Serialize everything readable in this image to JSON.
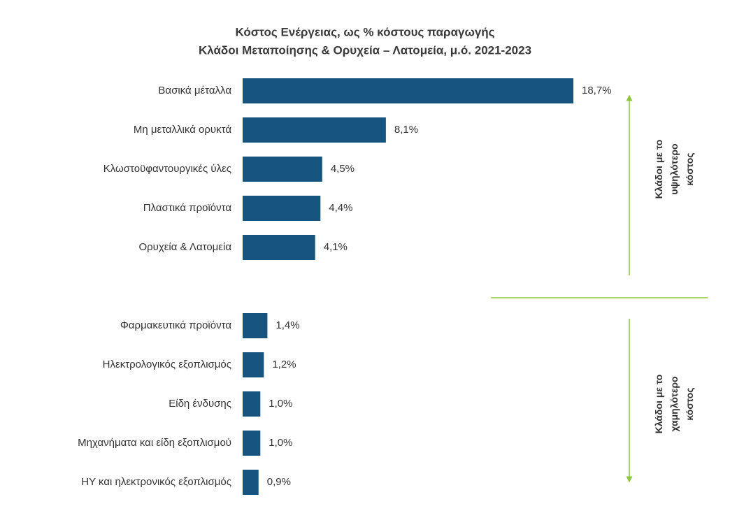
{
  "chart_data": {
    "type": "bar",
    "title": "Κόστος Ενέργειας, ως % κόστους παραγωγής",
    "subtitle": "Κλάδοι Μεταποίησης & Ορυχεία – Λατομεία, μ.ό. 2021-2023",
    "color": "#18557e",
    "annotation_color": "#8cc63f",
    "groups": [
      {
        "label": [
          "Κλάδοι με το",
          "υψηλότερο",
          "κόστος"
        ],
        "arrow": "up",
        "categories": [
          "Βασικά μέταλλα",
          "Μη μεταλλικά ορυκτά",
          "Κλωστοϋφαντουργικές ύλες",
          "Πλαστικά προϊόντα",
          "Ορυχεία & Λατομεία"
        ],
        "values": [
          18.7,
          8.1,
          4.5,
          4.4,
          4.1
        ],
        "value_labels": [
          "18,7%",
          "8,1%",
          "4,5%",
          "4,4%",
          "4,1%"
        ]
      },
      {
        "label": [
          "Κλάδοι με το",
          "χαμηλότερο",
          "κόστος"
        ],
        "arrow": "down",
        "categories": [
          "Φαρμακευτικά προϊόντα",
          "Ηλεκτρολογικός εξοπλισμός",
          "Είδη ένδυσης",
          "Μηχανήματα και είδη εξοπλισμού",
          "ΗΥ και ηλεκτρονικός εξοπλισμός"
        ],
        "values": [
          1.4,
          1.2,
          1.0,
          1.0,
          0.9
        ],
        "value_labels": [
          "1,4%",
          "1,2%",
          "1,0%",
          "1,0%",
          "0,9%"
        ]
      }
    ]
  }
}
